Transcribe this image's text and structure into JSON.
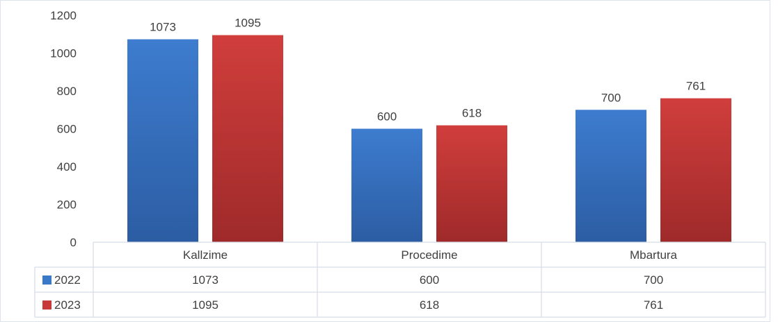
{
  "chart_data": {
    "type": "bar",
    "categories": [
      "Kallzime",
      "Procedime",
      "Mbartura"
    ],
    "series": [
      {
        "name": "2022",
        "values": [
          1073,
          600,
          700
        ],
        "color": "#3a78c8"
      },
      {
        "name": "2023",
        "values": [
          1095,
          618,
          761
        ],
        "color": "#c83a3a"
      }
    ],
    "yticks": [
      "0",
      "200",
      "400",
      "600",
      "800",
      "1000",
      "1200"
    ],
    "ylim": [
      0,
      1200
    ],
    "grid": false,
    "legend": "data-table",
    "data_labels": true
  }
}
